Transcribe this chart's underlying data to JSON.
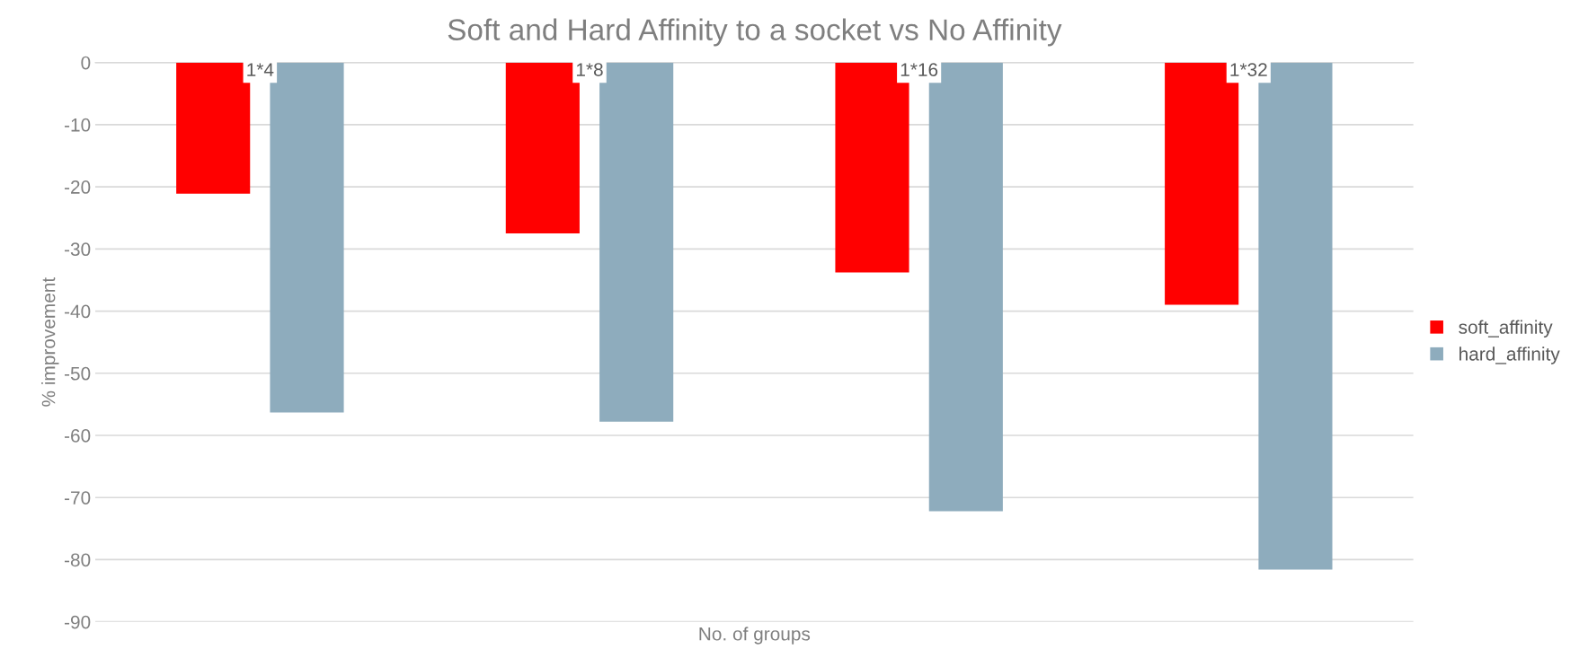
{
  "chart_data": {
    "type": "bar",
    "title": "Soft and Hard Affinity to a socket vs No Affinity",
    "xlabel": "No. of groups",
    "ylabel": "% improvement",
    "categories": [
      "1*4",
      "1*8",
      "1*16",
      "1*32"
    ],
    "series": [
      {
        "name": "soft_affinity",
        "color": "#ff0000",
        "values": [
          -21.1,
          -27.5,
          -33.8,
          -39.0
        ]
      },
      {
        "name": "hard_affinity",
        "color": "#8eacbd",
        "values": [
          -56.3,
          -57.8,
          -72.2,
          -81.6
        ]
      }
    ],
    "ylim": [
      -90,
      0
    ],
    "yticks": [
      -90,
      -80,
      -70,
      -60,
      -50,
      -40,
      -30,
      -20,
      -10,
      0
    ],
    "grid": "y",
    "legend": "right"
  }
}
